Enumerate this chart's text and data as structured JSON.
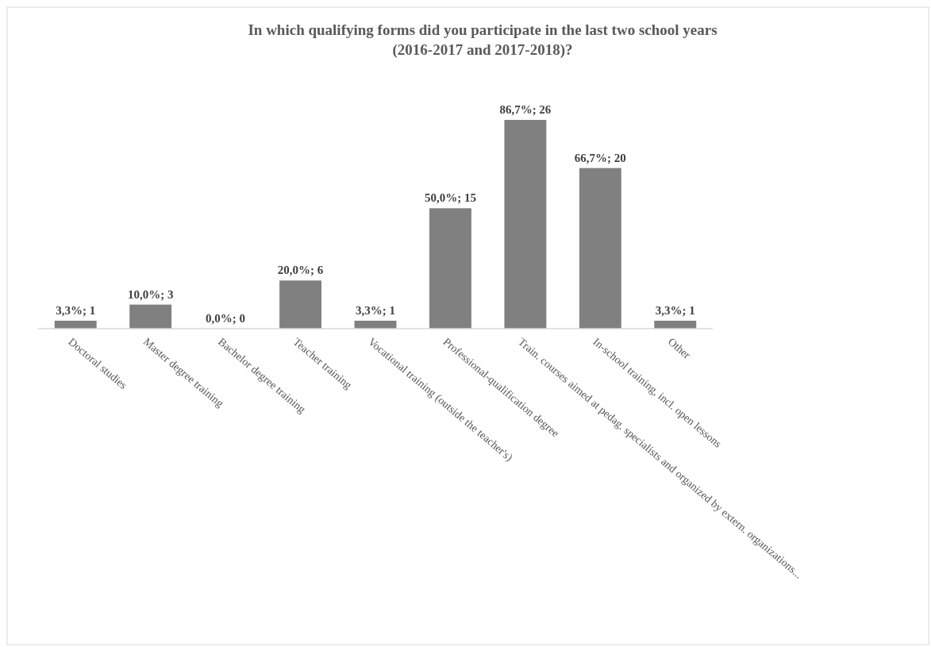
{
  "chart_data": {
    "type": "bar",
    "title": "In which qualifying forms did you participate in the last two school years (2016-2017 and 2017-2018)?",
    "categories": [
      "Doctoral studies",
      "Master degree training",
      "Bachelor degree training",
      "Teacher training",
      "Vocational training (outside the teacher's)",
      "Professional-qualification degree",
      "Train. courses aimed at pedag. specialists and organized by extern. organizations...",
      "In-school training, incl. open lessons",
      "Other"
    ],
    "values": [
      3.3,
      10.0,
      0.0,
      20.0,
      3.3,
      50.0,
      86.7,
      66.7,
      3.3
    ],
    "value_labels": [
      "3,3%; 1",
      "10,0%; 3",
      "0,0%; 0",
      "20,0%; 6",
      "3,3%; 1",
      "50,0%; 15",
      "86,7%; 26",
      "66,7%; 20",
      "3,3%; 1"
    ],
    "color": "#808080"
  }
}
